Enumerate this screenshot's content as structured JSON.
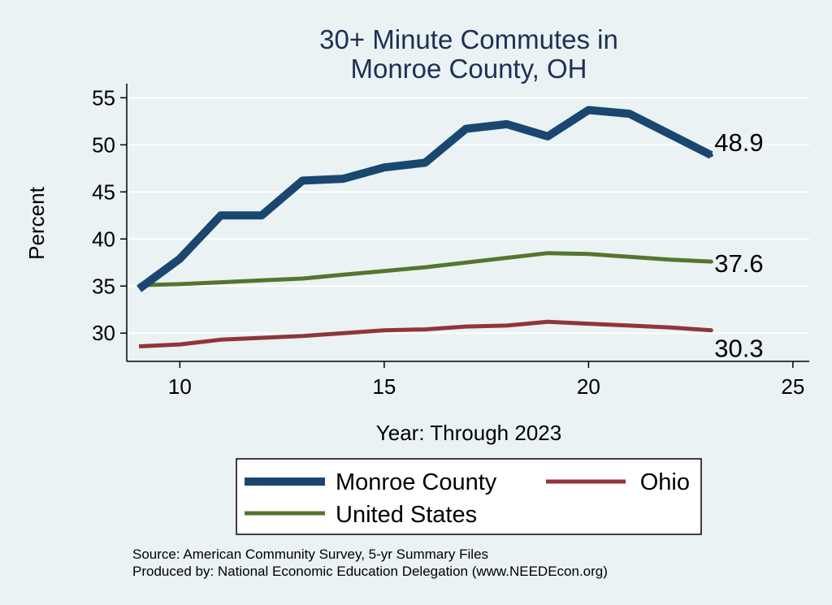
{
  "chart_data": {
    "type": "line",
    "title": [
      "30+ Minute Commutes in",
      "Monroe County, OH"
    ],
    "xlabel": "Year: Through 2023",
    "ylabel": "Percent",
    "xlim": [
      8.7,
      25.4
    ],
    "ylim": [
      27,
      56.5
    ],
    "xticks": [
      10,
      15,
      20,
      25
    ],
    "yticks": [
      30,
      35,
      40,
      45,
      50,
      55
    ],
    "grid": true,
    "x": [
      9,
      10,
      11,
      12,
      13,
      14,
      15,
      16,
      17,
      18,
      19,
      20,
      21,
      22,
      23
    ],
    "series": [
      {
        "name": "Monroe County",
        "color": "#1a476f",
        "values": [
          34.7,
          37.9,
          42.5,
          42.5,
          46.2,
          46.4,
          47.6,
          48.1,
          51.7,
          52.2,
          50.9,
          53.7,
          53.3,
          51.1,
          48.9
        ],
        "end_label": "48.9"
      },
      {
        "name": "Ohio",
        "color": "#90353b",
        "values": [
          28.6,
          28.8,
          29.3,
          29.5,
          29.7,
          30.0,
          30.3,
          30.4,
          30.7,
          30.8,
          31.2,
          31.0,
          30.8,
          30.6,
          30.3
        ],
        "end_label": "30.3"
      },
      {
        "name": "United States",
        "color": "#55752f",
        "values": [
          35.1,
          35.2,
          35.4,
          35.6,
          35.8,
          36.2,
          36.6,
          37.0,
          37.5,
          38.0,
          38.5,
          38.4,
          38.1,
          37.8,
          37.6
        ],
        "end_label": "37.6"
      }
    ],
    "legend": {
      "position": "bottom",
      "items": [
        "Monroe County",
        "Ohio",
        "United States"
      ]
    },
    "source": [
      "Source: American Community Survey, 5-yr Summary Files",
      "Produced by: National Economic Education Delegation (www.NEEDEcon.org)"
    ]
  }
}
